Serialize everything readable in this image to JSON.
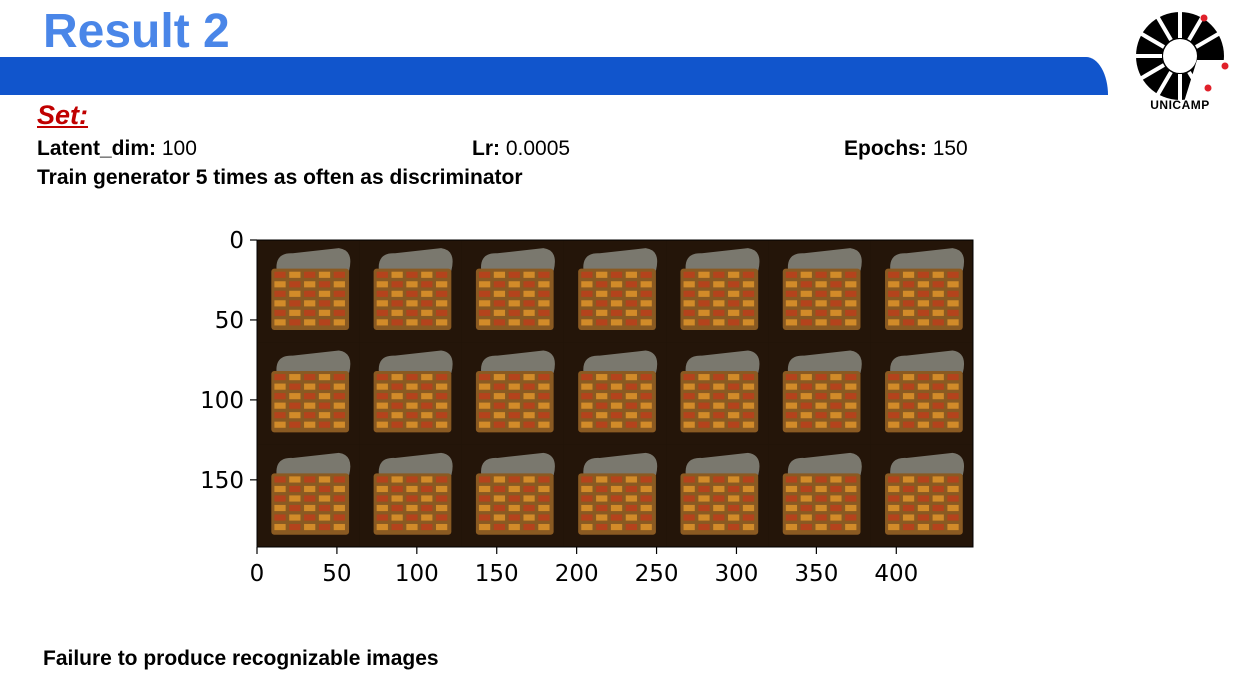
{
  "slide": {
    "title": "Result 2",
    "logo_text": "UNICAMP"
  },
  "set_section": {
    "heading": "Set:",
    "params": [
      {
        "label": "Latent_dim:",
        "value": "100"
      },
      {
        "label": "Lr:",
        "value": "0.0005"
      },
      {
        "label": "Epochs:",
        "value": "150"
      }
    ],
    "note": "Train generator 5 times as often as discriminator"
  },
  "footer": "Failure to produce recognizable images",
  "chart_data": {
    "type": "image-grid",
    "grid_rows": 3,
    "grid_cols": 7,
    "xlim": [
      0,
      448
    ],
    "ylim": [
      192,
      0
    ],
    "x_ticks": [
      "0",
      "50",
      "100",
      "150",
      "200",
      "250",
      "300",
      "350",
      "400"
    ],
    "x_tick_values": [
      0,
      50,
      100,
      150,
      200,
      250,
      300,
      350,
      400
    ],
    "y_ticks": [
      "0",
      "50",
      "100",
      "150"
    ],
    "y_tick_values": [
      0,
      50,
      100,
      150
    ]
  },
  "colors": {
    "title": "#4a86e8",
    "bar": "#1155cc",
    "heading": "#c00000",
    "tile_bg": "#1a1008",
    "tile_orange": "#d9902a",
    "tile_red": "#b8401c",
    "tile_gray": "#8a8a80"
  }
}
